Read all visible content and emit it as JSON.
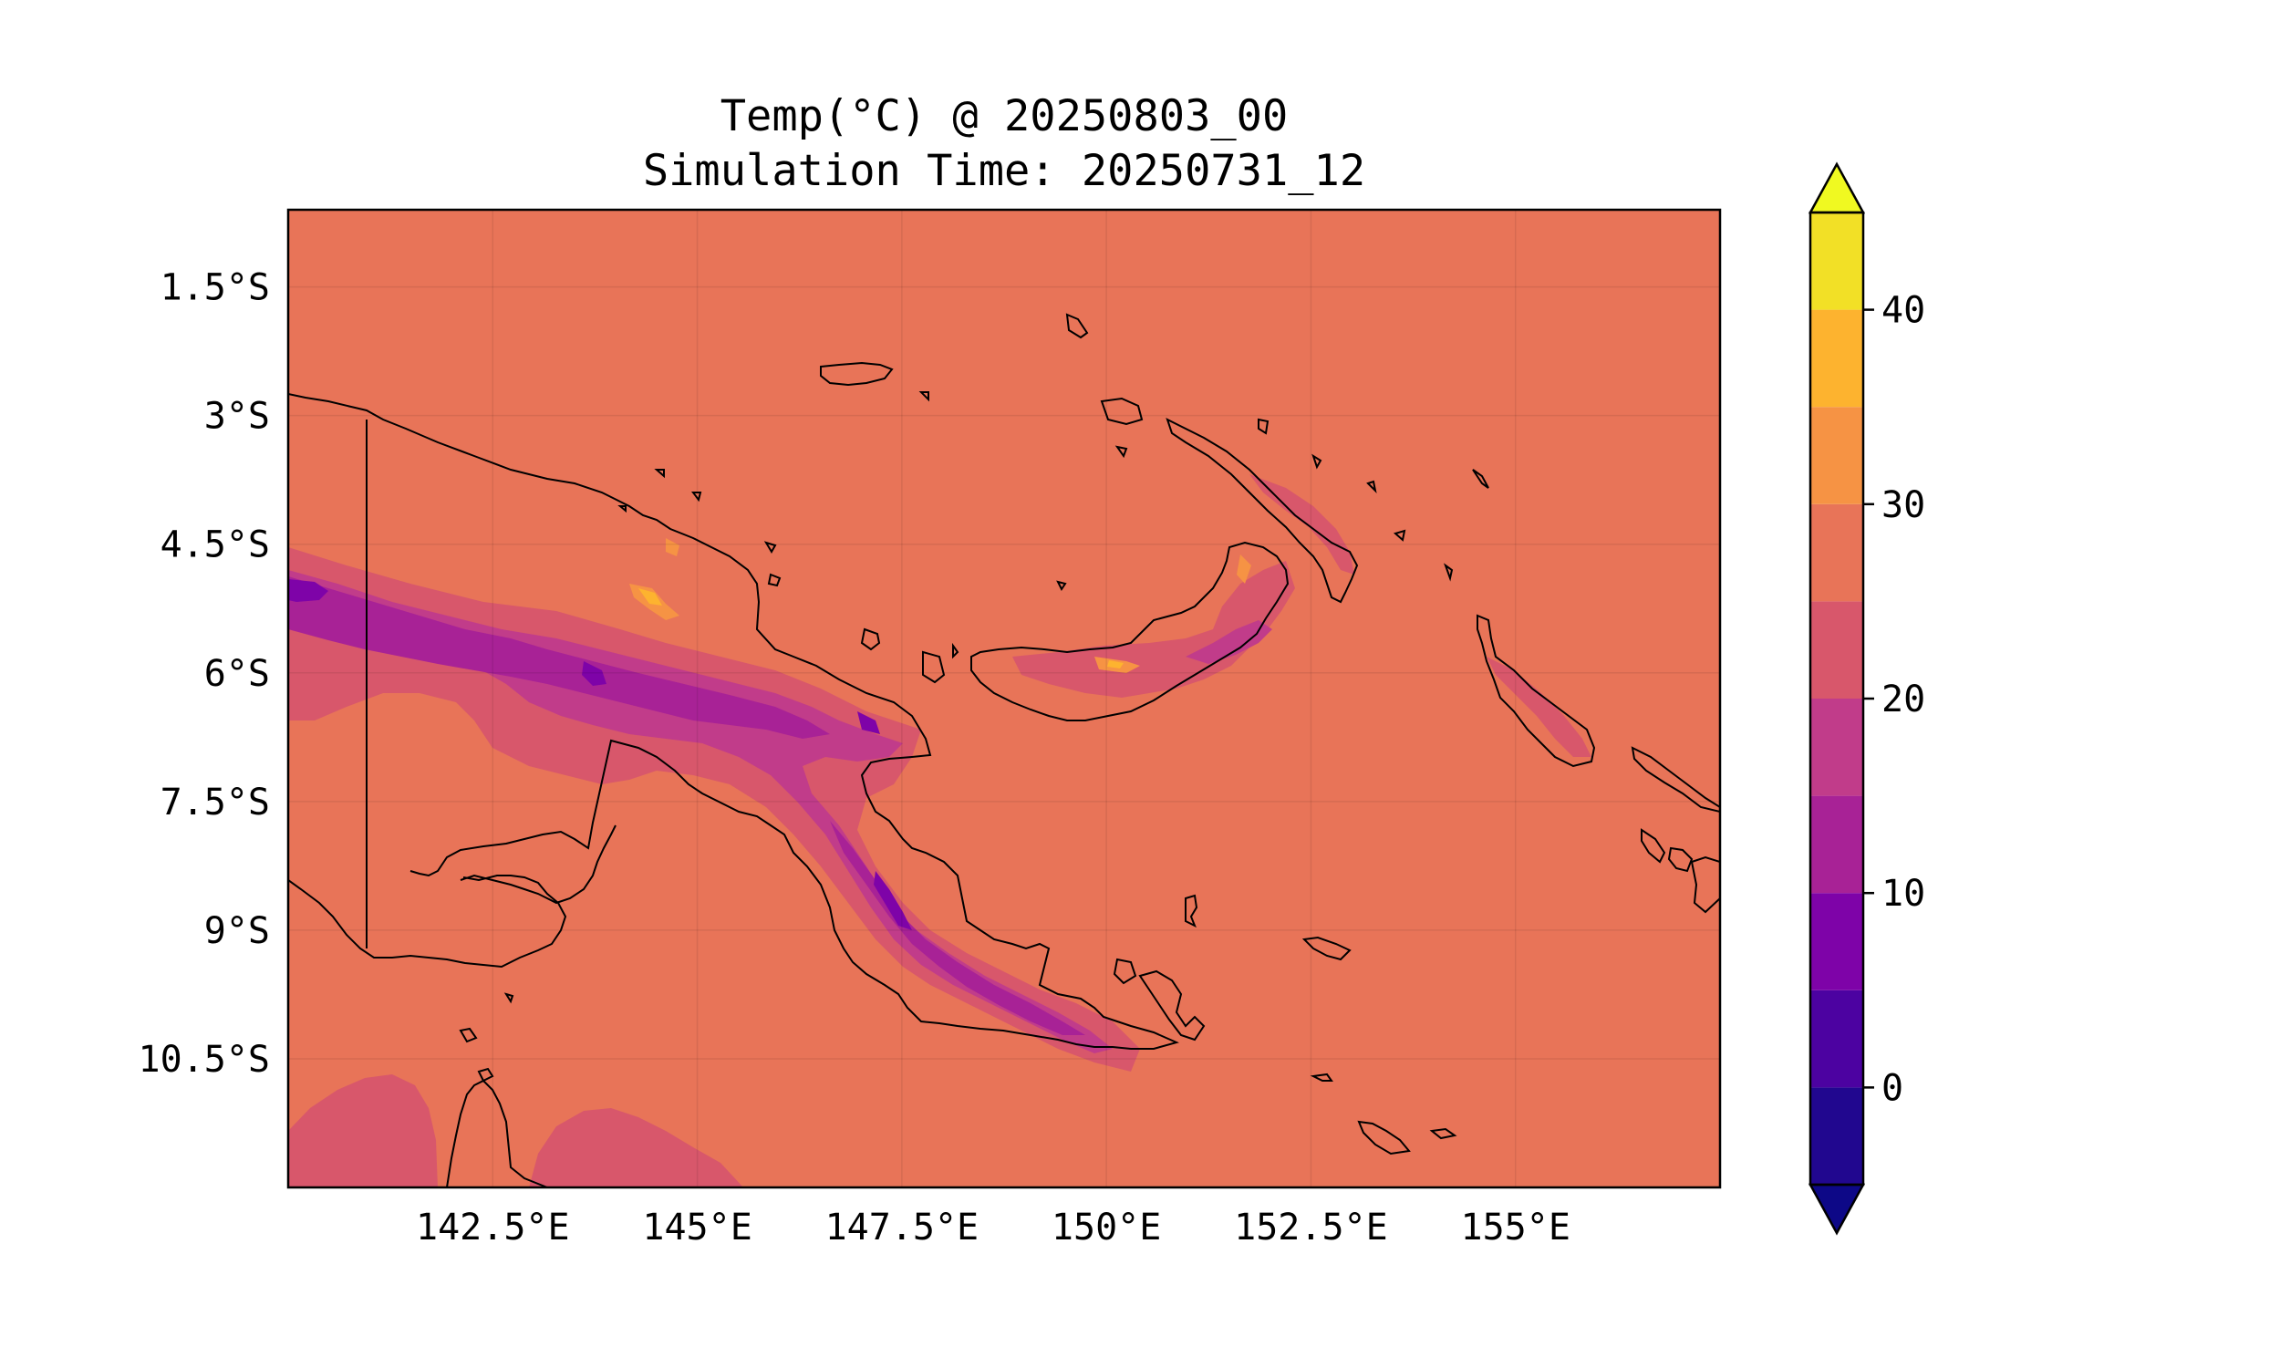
{
  "title": {
    "line1": "Temp(°C) @ 20250803_00",
    "line2": "Simulation Time: 20250731_12"
  },
  "map": {
    "lon_range": [
      140.0,
      157.5
    ],
    "lat_range": [
      -12.0,
      -0.6
    ],
    "background_level_color": "#e87458",
    "lat_ticks": [
      {
        "value": -1.5,
        "label": "1.5°S"
      },
      {
        "value": -3.0,
        "label": "3°S"
      },
      {
        "value": -4.5,
        "label": "4.5°S"
      },
      {
        "value": -6.0,
        "label": "6°S"
      },
      {
        "value": -7.5,
        "label": "7.5°S"
      },
      {
        "value": -9.0,
        "label": "9°S"
      },
      {
        "value": -10.5,
        "label": "10.5°S"
      }
    ],
    "lon_ticks": [
      {
        "value": 142.5,
        "label": "142.5°E"
      },
      {
        "value": 145.0,
        "label": "145°E"
      },
      {
        "value": 147.5,
        "label": "147.5°E"
      },
      {
        "value": 150.0,
        "label": "150°E"
      },
      {
        "value": 152.5,
        "label": "152.5°E"
      },
      {
        "value": 155.0,
        "label": "155°E"
      }
    ]
  },
  "colorbar": {
    "min": -5,
    "max": 45,
    "levels": [
      {
        "from": -5,
        "to": 0,
        "color": "#21078f"
      },
      {
        "from": 0,
        "to": 5,
        "color": "#4c02a1"
      },
      {
        "from": 5,
        "to": 10,
        "color": "#7e03a8"
      },
      {
        "from": 10,
        "to": 15,
        "color": "#a82296"
      },
      {
        "from": 15,
        "to": 20,
        "color": "#c13c8a"
      },
      {
        "from": 20,
        "to": 25,
        "color": "#d8576b"
      },
      {
        "from": 25,
        "to": 30,
        "color": "#e87458"
      },
      {
        "from": 30,
        "to": 35,
        "color": "#f69344"
      },
      {
        "from": 35,
        "to": 40,
        "color": "#fdb32f"
      },
      {
        "from": 40,
        "to": 45,
        "color": "#f2e026"
      }
    ],
    "under_color": "#0d0887",
    "over_color": "#f0f921",
    "ticks": [
      {
        "value": 0,
        "label": "0"
      },
      {
        "value": 10,
        "label": "10"
      },
      {
        "value": 20,
        "label": "20"
      },
      {
        "value": 30,
        "label": "30"
      },
      {
        "value": 40,
        "label": "40"
      }
    ]
  }
}
